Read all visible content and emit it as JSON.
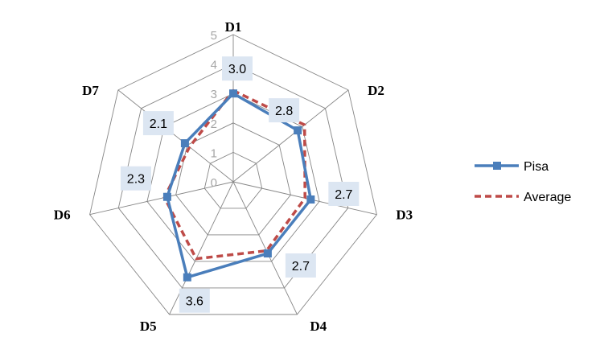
{
  "chart_data": {
    "type": "radar",
    "categories": [
      "D1",
      "D2",
      "D3",
      "D4",
      "D5",
      "D6",
      "D7"
    ],
    "rlim": [
      0,
      5
    ],
    "ticks": [
      "0",
      "1",
      "2",
      "3",
      "4",
      "5"
    ],
    "grid": true,
    "legend_position": "right",
    "series": [
      {
        "name": "Pisa",
        "values": [
          3.0,
          2.8,
          2.7,
          2.7,
          3.6,
          2.3,
          2.1
        ],
        "labels": [
          "3.0",
          "2.8",
          "2.7",
          "2.7",
          "3.6",
          "2.3",
          "2.1"
        ],
        "color": "#4a7ebb",
        "style": "solid",
        "marker": "square"
      },
      {
        "name": "Average",
        "values": [
          3.1,
          3.1,
          2.5,
          2.6,
          2.9,
          2.4,
          1.9
        ],
        "color": "#be4b48",
        "style": "dashed",
        "marker": "none"
      }
    ]
  },
  "colors": {
    "grid": "#868686",
    "label_box": "#dce6f2"
  }
}
